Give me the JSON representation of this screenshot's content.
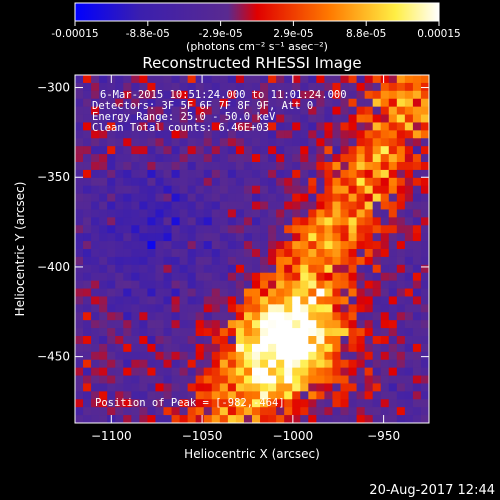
{
  "colorbar": {
    "ticks": [
      "-0.00015",
      "-8.8e-05",
      "-2.9e-05",
      "2.9e-05",
      "8.8e-05",
      "0.00015"
    ],
    "unit_label": "(photons cm⁻² s⁻¹ asec⁻²)",
    "colors": [
      "#0000ff",
      "#3b1fae",
      "#5a2a90",
      "#ff0000",
      "#ff7a00",
      "#ffff66",
      "#ffffff"
    ]
  },
  "chart_data": {
    "type": "heatmap",
    "title": "Reconstructed RHESSI Image",
    "xlabel": "Heliocentric X (arcsec)",
    "ylabel": "Heliocentric Y (arcsec)",
    "xlim": [
      -1120,
      -925
    ],
    "ylim": [
      -487,
      -293
    ],
    "x_ticks": [
      -1100,
      -1050,
      -1000,
      -950
    ],
    "y_ticks": [
      -300,
      -350,
      -400,
      -450
    ],
    "peak": {
      "x": -982,
      "y": -464
    }
  },
  "annotations": {
    "time_range": "6-Mar-2015 10:51:24.000 to 11:01:24.000",
    "detectors": "Detectors: 3F 5F 6F 7F 8F 9F, Att 0",
    "energy": "Energy Range: 25.0 - 50.0 keV",
    "clean": "Clean     Total counts: 6.46E+03",
    "peak_text": "Position of Peak = [-982,-464]"
  },
  "footer": {
    "timestamp": "20-Aug-2017 12:44"
  }
}
